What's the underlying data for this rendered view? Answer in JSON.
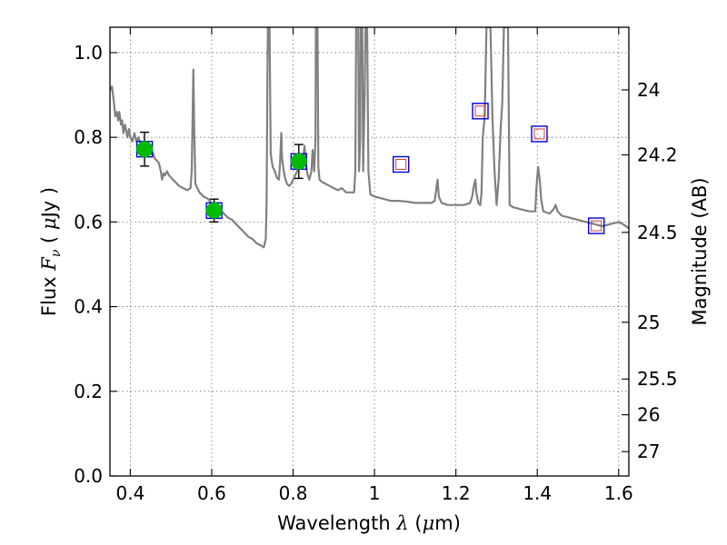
{
  "chart_data": {
    "type": "scatter",
    "title": "",
    "xlabel_text": "Wavelength",
    "xlabel_symbol": "λ",
    "xlabel_unit_open": "(",
    "xlabel_unit_mu": "μ",
    "xlabel_unit_rest": "m)",
    "ylabel_text": "Flux",
    "ylabel_symbol": "F",
    "ylabel_sub": "ν",
    "ylabel_unit_open": "(",
    "ylabel_unit_mu": "μ",
    "ylabel_unit_rest": "Jy )",
    "y2label": "Magnitude (AB)",
    "xlim": [
      0.35,
      1.625
    ],
    "ylim": [
      0.0,
      1.06
    ],
    "grid": true,
    "x_ticks": [
      {
        "value": 0.4,
        "label": "0.4"
      },
      {
        "value": 0.6,
        "label": "0.6"
      },
      {
        "value": 0.8,
        "label": "0.8"
      },
      {
        "value": 1.0,
        "label": "1"
      },
      {
        "value": 1.2,
        "label": "1.2"
      },
      {
        "value": 1.4,
        "label": "1.4"
      },
      {
        "value": 1.6,
        "label": "1.6"
      }
    ],
    "y_ticks": [
      {
        "value": 0.0,
        "label": "0.0"
      },
      {
        "value": 0.2,
        "label": "0.2"
      },
      {
        "value": 0.4,
        "label": "0.4"
      },
      {
        "value": 0.6,
        "label": "0.6"
      },
      {
        "value": 0.8,
        "label": "0.8"
      },
      {
        "value": 1.0,
        "label": "1.0"
      }
    ],
    "y2_ticks": [
      {
        "value": 24,
        "label": "24"
      },
      {
        "value": 24.2,
        "label": "24.2"
      },
      {
        "value": 24.5,
        "label": "24.5"
      },
      {
        "value": 25,
        "label": "25"
      },
      {
        "value": 25.5,
        "label": "25.5"
      },
      {
        "value": 26,
        "label": "26"
      },
      {
        "value": 27,
        "label": "27"
      }
    ],
    "colors": {
      "template": "#808080",
      "observed": "#00bb00",
      "model_box": "#0000dd",
      "model_inner": "#d04040",
      "errorbar": "#000000"
    },
    "template_spectrum": [
      [
        0.35,
        0.91
      ],
      [
        0.355,
        0.92
      ],
      [
        0.36,
        0.88
      ],
      [
        0.363,
        0.85
      ],
      [
        0.367,
        0.86
      ],
      [
        0.37,
        0.84
      ],
      [
        0.373,
        0.86
      ],
      [
        0.377,
        0.83
      ],
      [
        0.38,
        0.84
      ],
      [
        0.383,
        0.81
      ],
      [
        0.387,
        0.83
      ],
      [
        0.39,
        0.815
      ],
      [
        0.393,
        0.8
      ],
      [
        0.397,
        0.82
      ],
      [
        0.4,
        0.8
      ],
      [
        0.405,
        0.79
      ],
      [
        0.41,
        0.81
      ],
      [
        0.415,
        0.79
      ],
      [
        0.42,
        0.8
      ],
      [
        0.425,
        0.785
      ],
      [
        0.43,
        0.79
      ],
      [
        0.435,
        0.775
      ],
      [
        0.44,
        0.78
      ],
      [
        0.445,
        0.77
      ],
      [
        0.45,
        0.76
      ],
      [
        0.455,
        0.765
      ],
      [
        0.46,
        0.75
      ],
      [
        0.465,
        0.745
      ],
      [
        0.47,
        0.74
      ],
      [
        0.475,
        0.72
      ],
      [
        0.478,
        0.7
      ],
      [
        0.482,
        0.715
      ],
      [
        0.485,
        0.71
      ],
      [
        0.49,
        0.72
      ],
      [
        0.495,
        0.71
      ],
      [
        0.5,
        0.705
      ],
      [
        0.505,
        0.7
      ],
      [
        0.51,
        0.695
      ],
      [
        0.52,
        0.685
      ],
      [
        0.53,
        0.68
      ],
      [
        0.54,
        0.675
      ],
      [
        0.548,
        0.68
      ],
      [
        0.551,
        0.72
      ],
      [
        0.553,
        0.84
      ],
      [
        0.555,
        0.96
      ],
      [
        0.557,
        0.82
      ],
      [
        0.56,
        0.69
      ],
      [
        0.57,
        0.67
      ],
      [
        0.58,
        0.66
      ],
      [
        0.59,
        0.655
      ],
      [
        0.6,
        0.645
      ],
      [
        0.61,
        0.64
      ],
      [
        0.62,
        0.63
      ],
      [
        0.63,
        0.62
      ],
      [
        0.64,
        0.61
      ],
      [
        0.65,
        0.605
      ],
      [
        0.66,
        0.595
      ],
      [
        0.67,
        0.585
      ],
      [
        0.68,
        0.575
      ],
      [
        0.69,
        0.565
      ],
      [
        0.7,
        0.56
      ],
      [
        0.71,
        0.55
      ],
      [
        0.72,
        0.545
      ],
      [
        0.728,
        0.54
      ],
      [
        0.733,
        0.56
      ],
      [
        0.735,
        0.65
      ],
      [
        0.737,
        0.95
      ],
      [
        0.738,
        1.06
      ],
      [
        0.742,
        1.06
      ],
      [
        0.745,
        0.76
      ],
      [
        0.75,
        0.73
      ],
      [
        0.755,
        0.72
      ],
      [
        0.76,
        0.705
      ],
      [
        0.765,
        0.7
      ],
      [
        0.768,
        0.74
      ],
      [
        0.771,
        0.81
      ],
      [
        0.773,
        0.75
      ],
      [
        0.777,
        0.72
      ],
      [
        0.78,
        0.705
      ],
      [
        0.785,
        0.69
      ],
      [
        0.79,
        0.685
      ],
      [
        0.795,
        0.69
      ],
      [
        0.8,
        0.7
      ],
      [
        0.805,
        0.71
      ],
      [
        0.81,
        0.72
      ],
      [
        0.815,
        0.73
      ],
      [
        0.82,
        0.74
      ],
      [
        0.825,
        0.75
      ],
      [
        0.828,
        0.78
      ],
      [
        0.832,
        0.73
      ],
      [
        0.836,
        0.71
      ],
      [
        0.84,
        0.7
      ],
      [
        0.845,
        0.72
      ],
      [
        0.848,
        0.77
      ],
      [
        0.852,
        0.72
      ],
      [
        0.855,
        0.8
      ],
      [
        0.856,
        1.06
      ],
      [
        0.86,
        1.06
      ],
      [
        0.862,
        0.73
      ],
      [
        0.865,
        0.7
      ],
      [
        0.87,
        0.695
      ],
      [
        0.88,
        0.69
      ],
      [
        0.89,
        0.685
      ],
      [
        0.9,
        0.68
      ],
      [
        0.91,
        0.675
      ],
      [
        0.92,
        0.68
      ],
      [
        0.93,
        0.67
      ],
      [
        0.94,
        0.67
      ],
      [
        0.95,
        0.67
      ],
      [
        0.953,
        0.72
      ],
      [
        0.955,
        1.06
      ],
      [
        0.96,
        1.06
      ],
      [
        0.962,
        0.72
      ],
      [
        0.965,
        0.8
      ],
      [
        0.966,
        1.06
      ],
      [
        0.97,
        1.06
      ],
      [
        0.972,
        0.72
      ],
      [
        0.976,
        0.9
      ],
      [
        0.978,
        1.06
      ],
      [
        0.982,
        1.06
      ],
      [
        0.985,
        0.72
      ],
      [
        0.99,
        0.665
      ],
      [
        1.0,
        0.66
      ],
      [
        1.02,
        0.655
      ],
      [
        1.04,
        0.65
      ],
      [
        1.06,
        0.65
      ],
      [
        1.08,
        0.648
      ],
      [
        1.1,
        0.645
      ],
      [
        1.12,
        0.645
      ],
      [
        1.14,
        0.645
      ],
      [
        1.148,
        0.65
      ],
      [
        1.152,
        0.68
      ],
      [
        1.155,
        0.7
      ],
      [
        1.158,
        0.66
      ],
      [
        1.165,
        0.645
      ],
      [
        1.18,
        0.64
      ],
      [
        1.2,
        0.64
      ],
      [
        1.22,
        0.64
      ],
      [
        1.235,
        0.645
      ],
      [
        1.24,
        0.66
      ],
      [
        1.245,
        0.69
      ],
      [
        1.248,
        0.7
      ],
      [
        1.25,
        0.67
      ],
      [
        1.255,
        0.645
      ],
      [
        1.26,
        0.64
      ],
      [
        1.263,
        0.67
      ],
      [
        1.266,
        0.8
      ],
      [
        1.27,
        0.84
      ],
      [
        1.272,
        0.9
      ],
      [
        1.275,
        1.06
      ],
      [
        1.285,
        1.06
      ],
      [
        1.29,
        0.84
      ],
      [
        1.295,
        0.72
      ],
      [
        1.3,
        0.64
      ],
      [
        1.305,
        0.7
      ],
      [
        1.31,
        0.82
      ],
      [
        1.314,
        0.88
      ],
      [
        1.318,
        1.06
      ],
      [
        1.328,
        1.06
      ],
      [
        1.332,
        0.64
      ],
      [
        1.34,
        0.635
      ],
      [
        1.36,
        0.63
      ],
      [
        1.38,
        0.625
      ],
      [
        1.395,
        0.625
      ],
      [
        1.398,
        0.68
      ],
      [
        1.402,
        0.73
      ],
      [
        1.406,
        0.7
      ],
      [
        1.41,
        0.65
      ],
      [
        1.415,
        0.625
      ],
      [
        1.43,
        0.62
      ],
      [
        1.44,
        0.63
      ],
      [
        1.445,
        0.64
      ],
      [
        1.45,
        0.625
      ],
      [
        1.46,
        0.615
      ],
      [
        1.48,
        0.61
      ],
      [
        1.5,
        0.605
      ],
      [
        1.52,
        0.6
      ],
      [
        1.54,
        0.595
      ],
      [
        1.56,
        0.59
      ],
      [
        1.58,
        0.595
      ],
      [
        1.6,
        0.6
      ],
      [
        1.61,
        0.595
      ],
      [
        1.625,
        0.585
      ]
    ],
    "observed_points": [
      {
        "x": 0.435,
        "y": 0.772,
        "yerr": 0.04
      },
      {
        "x": 0.606,
        "y": 0.627,
        "yerr": 0.027
      },
      {
        "x": 0.814,
        "y": 0.743,
        "yerr": 0.04
      }
    ],
    "model_points": [
      {
        "x": 0.435,
        "y": 0.772
      },
      {
        "x": 0.606,
        "y": 0.627
      },
      {
        "x": 0.814,
        "y": 0.743
      },
      {
        "x": 1.065,
        "y": 0.736
      },
      {
        "x": 1.26,
        "y": 0.862
      },
      {
        "x": 1.405,
        "y": 0.808
      },
      {
        "x": 1.545,
        "y": 0.591
      }
    ]
  }
}
